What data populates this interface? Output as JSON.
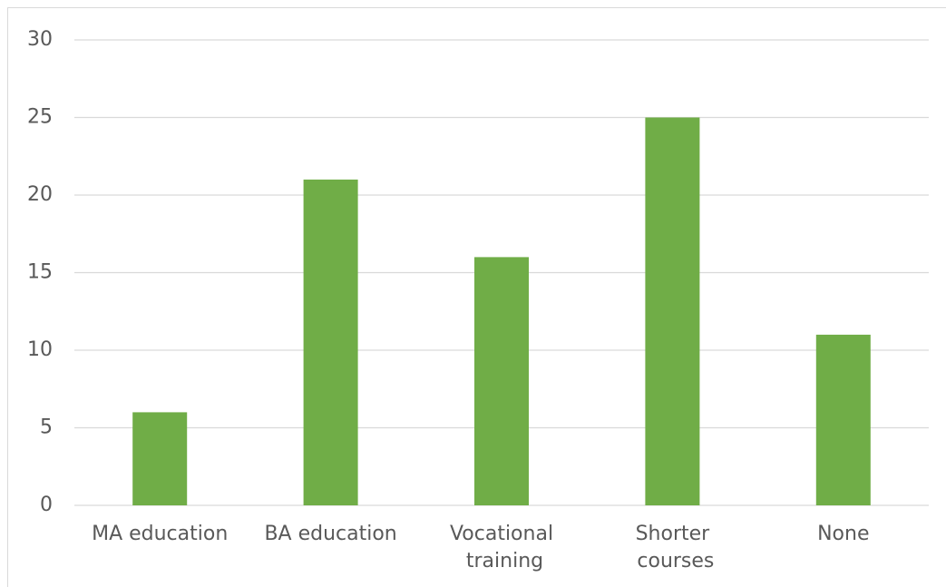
{
  "chart_data": {
    "type": "bar",
    "categories": [
      "MA education",
      "BA education",
      "Vocational training",
      "Shorter courses",
      "None"
    ],
    "values": [
      6,
      21,
      16,
      25,
      11
    ],
    "color": "#70ad47",
    "ylim": [
      0,
      30
    ],
    "yticks": [
      0,
      5,
      10,
      15,
      20,
      25,
      30
    ],
    "grid": true
  }
}
